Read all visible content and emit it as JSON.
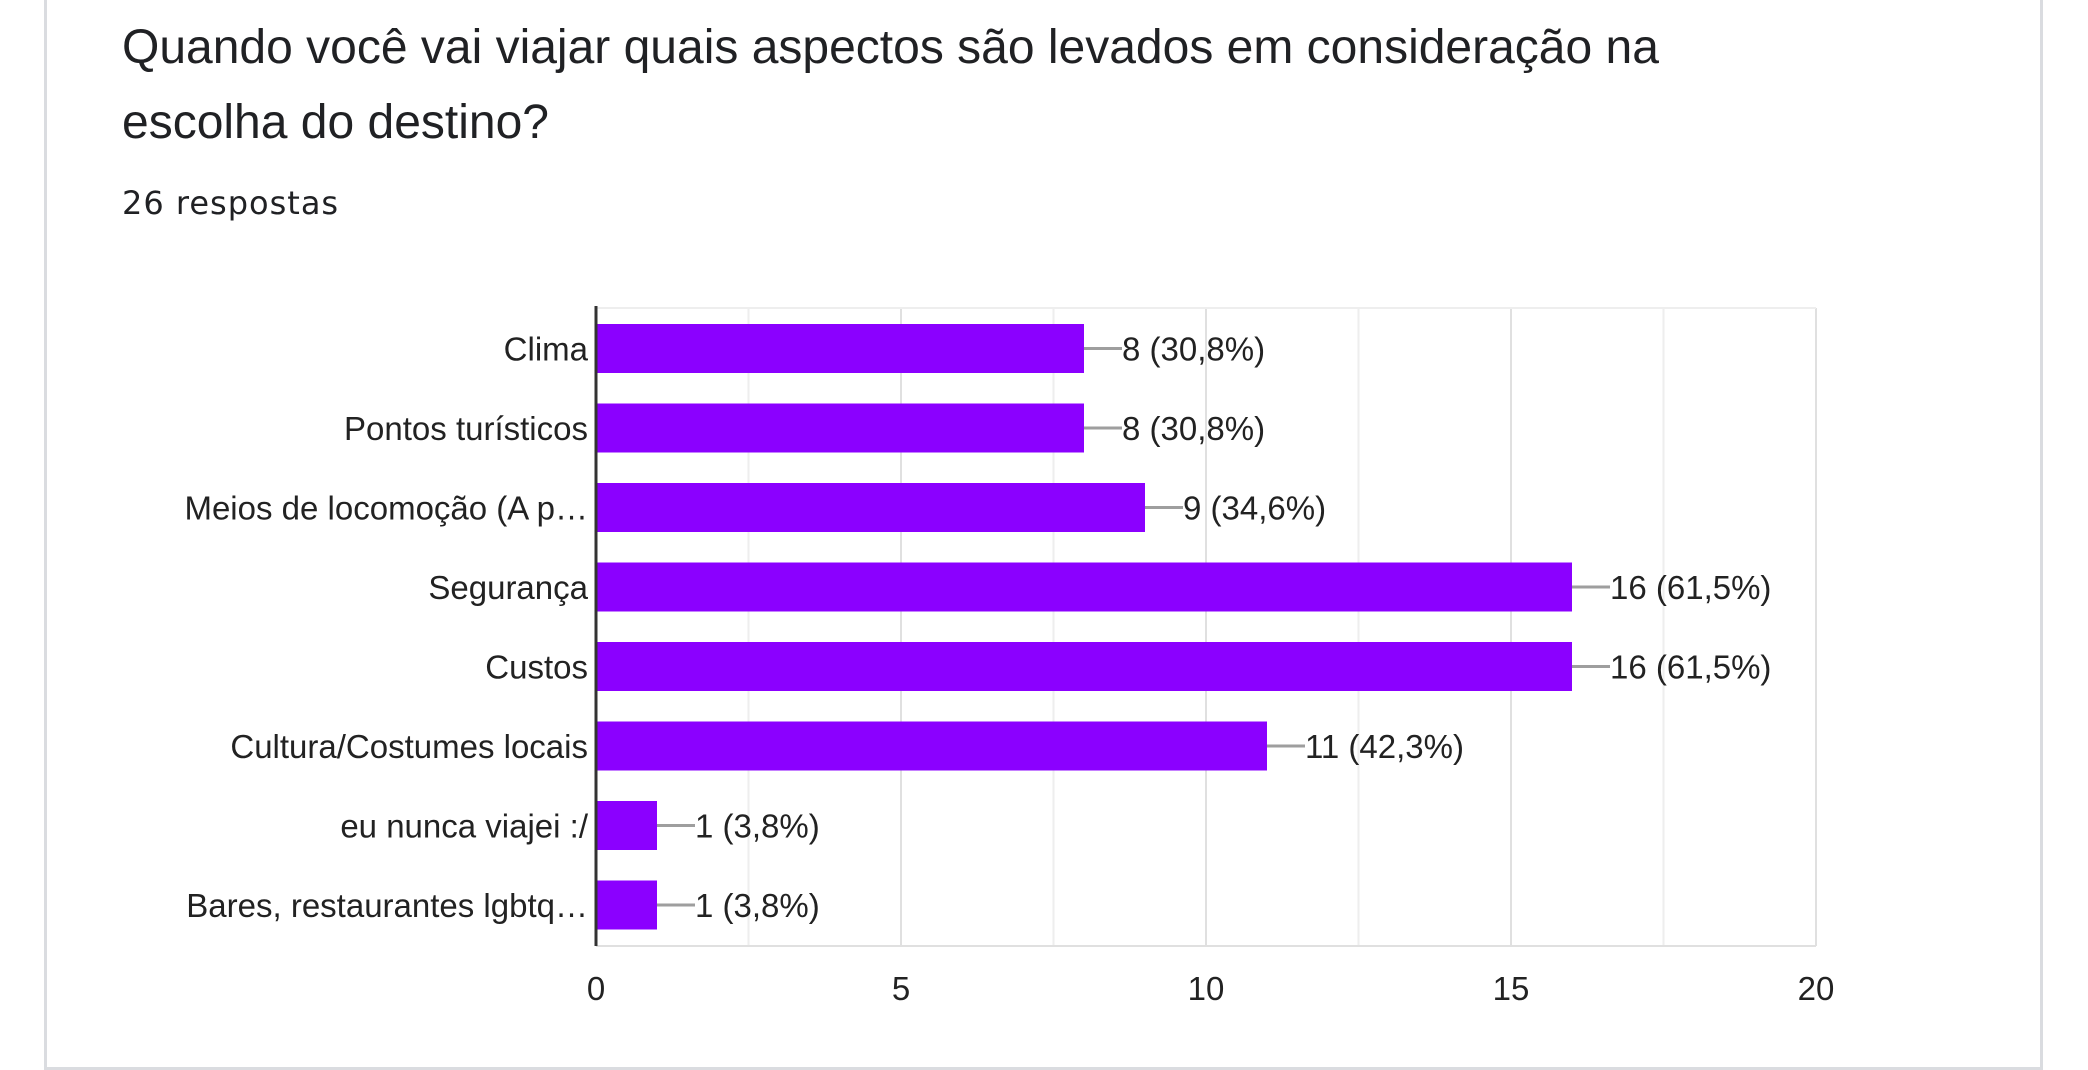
{
  "question": {
    "title": "Quando você vai viajar quais aspectos são levados em consideração na escolha do destino?",
    "response_count": "26 respostas"
  },
  "colors": {
    "bar": "#8b00ff",
    "grid": "#e6e6e6",
    "axis": "#333333",
    "leader": "#9e9e9e"
  },
  "chart_data": {
    "type": "bar",
    "orientation": "horizontal",
    "title": "",
    "xlabel": "",
    "ylabel": "",
    "xlim": [
      0,
      20
    ],
    "x_ticks": [
      0,
      5,
      10,
      15,
      20
    ],
    "grid": true,
    "categories": [
      "Clima",
      "Pontos turísticos",
      "Meios de locomoção (A p…",
      "Segurança",
      "Custos",
      "Cultura/Costumes locais",
      "eu nunca viajei :/",
      "Bares, restaurantes lgbtq…"
    ],
    "values": [
      8,
      8,
      9,
      16,
      16,
      11,
      1,
      1
    ],
    "value_labels": [
      "8 (30,8%)",
      "8 (30,8%)",
      "9 (34,6%)",
      "16 (61,5%)",
      "16 (61,5%)",
      "11 (42,3%)",
      "1 (3,8%)",
      "1 (3,8%)"
    ]
  }
}
